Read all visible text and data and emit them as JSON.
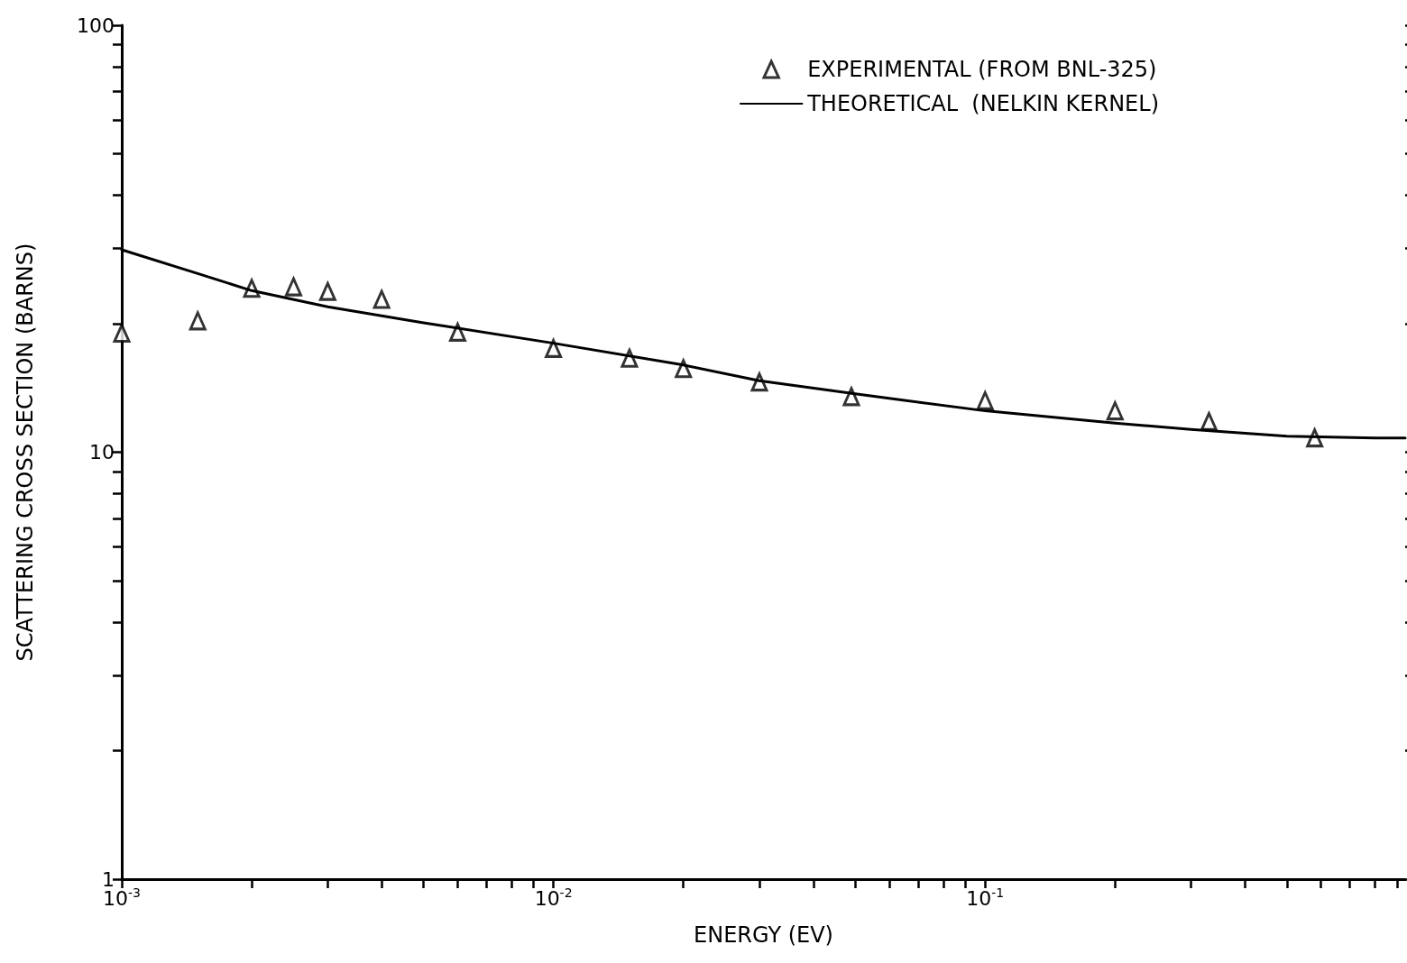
{
  "chart_data": {
    "type": "scatter",
    "xlabel": "ENERGY (EV)",
    "ylabel": "SCATTERING CROSS SECTION (BARNS)",
    "log": "xy",
    "grid": false,
    "legend": "top right",
    "xlim": [
      0.001,
      0.94
    ],
    "ylim": [
      1,
      100
    ],
    "xticks": [
      {
        "value": 0.001,
        "label": "10$^{-3}$"
      },
      {
        "value": 0.002,
        "label": null
      },
      {
        "value": 0.003,
        "label": null
      },
      {
        "value": 0.004,
        "label": null
      },
      {
        "value": 0.005,
        "label": null
      },
      {
        "value": 0.006,
        "label": null
      },
      {
        "value": 0.007,
        "label": null
      },
      {
        "value": 0.008,
        "label": null
      },
      {
        "value": 0.009,
        "label": null
      },
      {
        "value": 0.01,
        "label": "10$^{-2}$"
      },
      {
        "value": 0.02,
        "label": null
      },
      {
        "value": 0.03,
        "label": null
      },
      {
        "value": 0.04,
        "label": null
      },
      {
        "value": 0.05,
        "label": null
      },
      {
        "value": 0.06,
        "label": null
      },
      {
        "value": 0.07,
        "label": null
      },
      {
        "value": 0.08,
        "label": null
      },
      {
        "value": 0.09,
        "label": null
      },
      {
        "value": 0.1,
        "label": "10$^{-1}$"
      },
      {
        "value": 0.2,
        "label": null
      },
      {
        "value": 0.3,
        "label": null
      },
      {
        "value": 0.4,
        "label": null
      },
      {
        "value": 0.5,
        "label": null
      },
      {
        "value": 0.6,
        "label": null
      },
      {
        "value": 0.7,
        "label": null
      },
      {
        "value": 0.8,
        "label": null
      },
      {
        "value": 0.9,
        "label": null
      }
    ],
    "yticks": [
      1,
      {
        "value": 2,
        "label": null
      },
      {
        "value": 3,
        "label": null
      },
      {
        "value": 4,
        "label": null
      },
      {
        "value": 5,
        "label": null
      },
      {
        "value": 6,
        "label": null
      },
      {
        "value": 7,
        "label": null
      },
      {
        "value": 8,
        "label": null
      },
      {
        "value": 9,
        "label": null
      },
      10,
      {
        "value": 20,
        "label": null
      },
      {
        "value": 30,
        "label": null
      },
      {
        "value": 40,
        "label": null
      },
      {
        "value": 50,
        "label": null
      },
      {
        "value": 60,
        "label": null
      },
      {
        "value": 70,
        "label": null
      },
      {
        "value": 80,
        "label": null
      },
      {
        "value": 90,
        "label": null
      },
      100
    ],
    "series": [
      {
        "name": "EXPERIMENTAL (FROM BNL-325)",
        "marker": "triangle",
        "color": "#000000",
        "x": [
          0.001,
          0.0015,
          0.002,
          0.0025,
          0.003,
          0.004,
          0.006,
          0.01,
          0.015,
          0.02,
          0.03,
          0.049,
          0.1,
          0.2,
          0.33,
          0.58
        ],
        "values": [
          19.0,
          20.3,
          24.2,
          24.4,
          23.8,
          22.8,
          19.1,
          17.5,
          16.6,
          15.7,
          14.6,
          13.5,
          13.2,
          12.5,
          11.8,
          10.8
        ]
      },
      {
        "name": "THEORETICAL  (NELKIN KERNEL)",
        "type": "line",
        "marker": "none",
        "line_style": "solid",
        "color": "#000000",
        "x": [
          0.001,
          0.0015,
          0.002,
          0.003,
          0.005,
          0.01,
          0.02,
          0.03,
          0.05,
          0.1,
          0.2,
          0.3,
          0.5,
          0.8,
          0.94
        ],
        "values": [
          29.8,
          26.2,
          23.9,
          21.9,
          20.1,
          18.0,
          16.0,
          14.7,
          13.7,
          12.5,
          11.7,
          11.3,
          10.9,
          10.8,
          10.8
        ]
      }
    ]
  }
}
